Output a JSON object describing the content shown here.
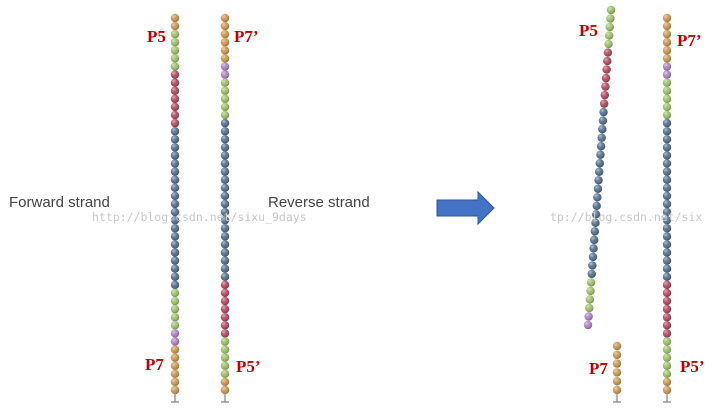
{
  "labels": {
    "left_p5": "P5",
    "left_p7_prime": "P7’",
    "left_p7": "P7",
    "left_p5_prime": "P5’",
    "forward_strand": "Forward strand",
    "reverse_strand": "Reverse strand",
    "right_p5": "P5",
    "right_p7_prime": "P7’",
    "right_p7": "P7",
    "right_p5_prime": "P5’"
  },
  "watermarks": {
    "left": "http://blog.csdn.net/sixu_9days",
    "right": "tp://blog.csdn.net/six"
  },
  "colors": {
    "orange": "#c8934a",
    "green": "#98bd62",
    "red": "#b0445a",
    "blue": "#4f6b8c",
    "purple": "#a97fbd",
    "arrow": "#4472c4",
    "label_red": "#c00000",
    "stem": "#999999",
    "background": "#ffffff"
  },
  "strands": {
    "forward": [
      "orange",
      "orange",
      "green",
      "green",
      "green",
      "green",
      "green",
      "red",
      "red",
      "red",
      "red",
      "red",
      "red",
      "red",
      "blue",
      "blue",
      "blue",
      "blue",
      "blue",
      "blue",
      "blue",
      "blue",
      "blue",
      "blue",
      "blue",
      "blue",
      "blue",
      "blue",
      "blue",
      "blue",
      "blue",
      "blue",
      "blue",
      "blue",
      "green",
      "green",
      "green",
      "green",
      "green",
      "purple",
      "purple",
      "orange",
      "orange",
      "orange",
      "orange",
      "orange",
      "orange"
    ],
    "reverse": [
      "orange",
      "orange",
      "orange",
      "orange",
      "orange",
      "orange",
      "purple",
      "purple",
      "green",
      "green",
      "green",
      "green",
      "green",
      "blue",
      "blue",
      "blue",
      "blue",
      "blue",
      "blue",
      "blue",
      "blue",
      "blue",
      "blue",
      "blue",
      "blue",
      "blue",
      "blue",
      "blue",
      "blue",
      "blue",
      "blue",
      "blue",
      "blue",
      "red",
      "red",
      "red",
      "red",
      "red",
      "red",
      "red",
      "green",
      "green",
      "green",
      "green",
      "green",
      "orange",
      "orange"
    ],
    "product_bent": [
      "green",
      "green",
      "green",
      "green",
      "green",
      "red",
      "red",
      "red",
      "red",
      "red",
      "red",
      "red",
      "blue",
      "blue",
      "blue",
      "blue",
      "blue",
      "blue",
      "blue",
      "blue",
      "blue",
      "blue",
      "blue",
      "blue",
      "blue",
      "blue",
      "blue",
      "blue",
      "blue",
      "blue",
      "blue",
      "blue",
      "green",
      "green",
      "green",
      "green",
      "purple",
      "purple"
    ],
    "product_short": [
      "orange",
      "orange",
      "orange",
      "orange",
      "orange",
      "orange"
    ],
    "product_reverse": [
      "orange",
      "orange",
      "orange",
      "orange",
      "orange",
      "orange",
      "purple",
      "purple",
      "green",
      "green",
      "green",
      "green",
      "green",
      "blue",
      "blue",
      "blue",
      "blue",
      "blue",
      "blue",
      "blue",
      "blue",
      "blue",
      "blue",
      "blue",
      "blue",
      "blue",
      "blue",
      "blue",
      "blue",
      "blue",
      "blue",
      "blue",
      "blue",
      "red",
      "red",
      "red",
      "red",
      "red",
      "red",
      "red",
      "green",
      "green",
      "green",
      "green",
      "green",
      "orange",
      "orange"
    ]
  }
}
